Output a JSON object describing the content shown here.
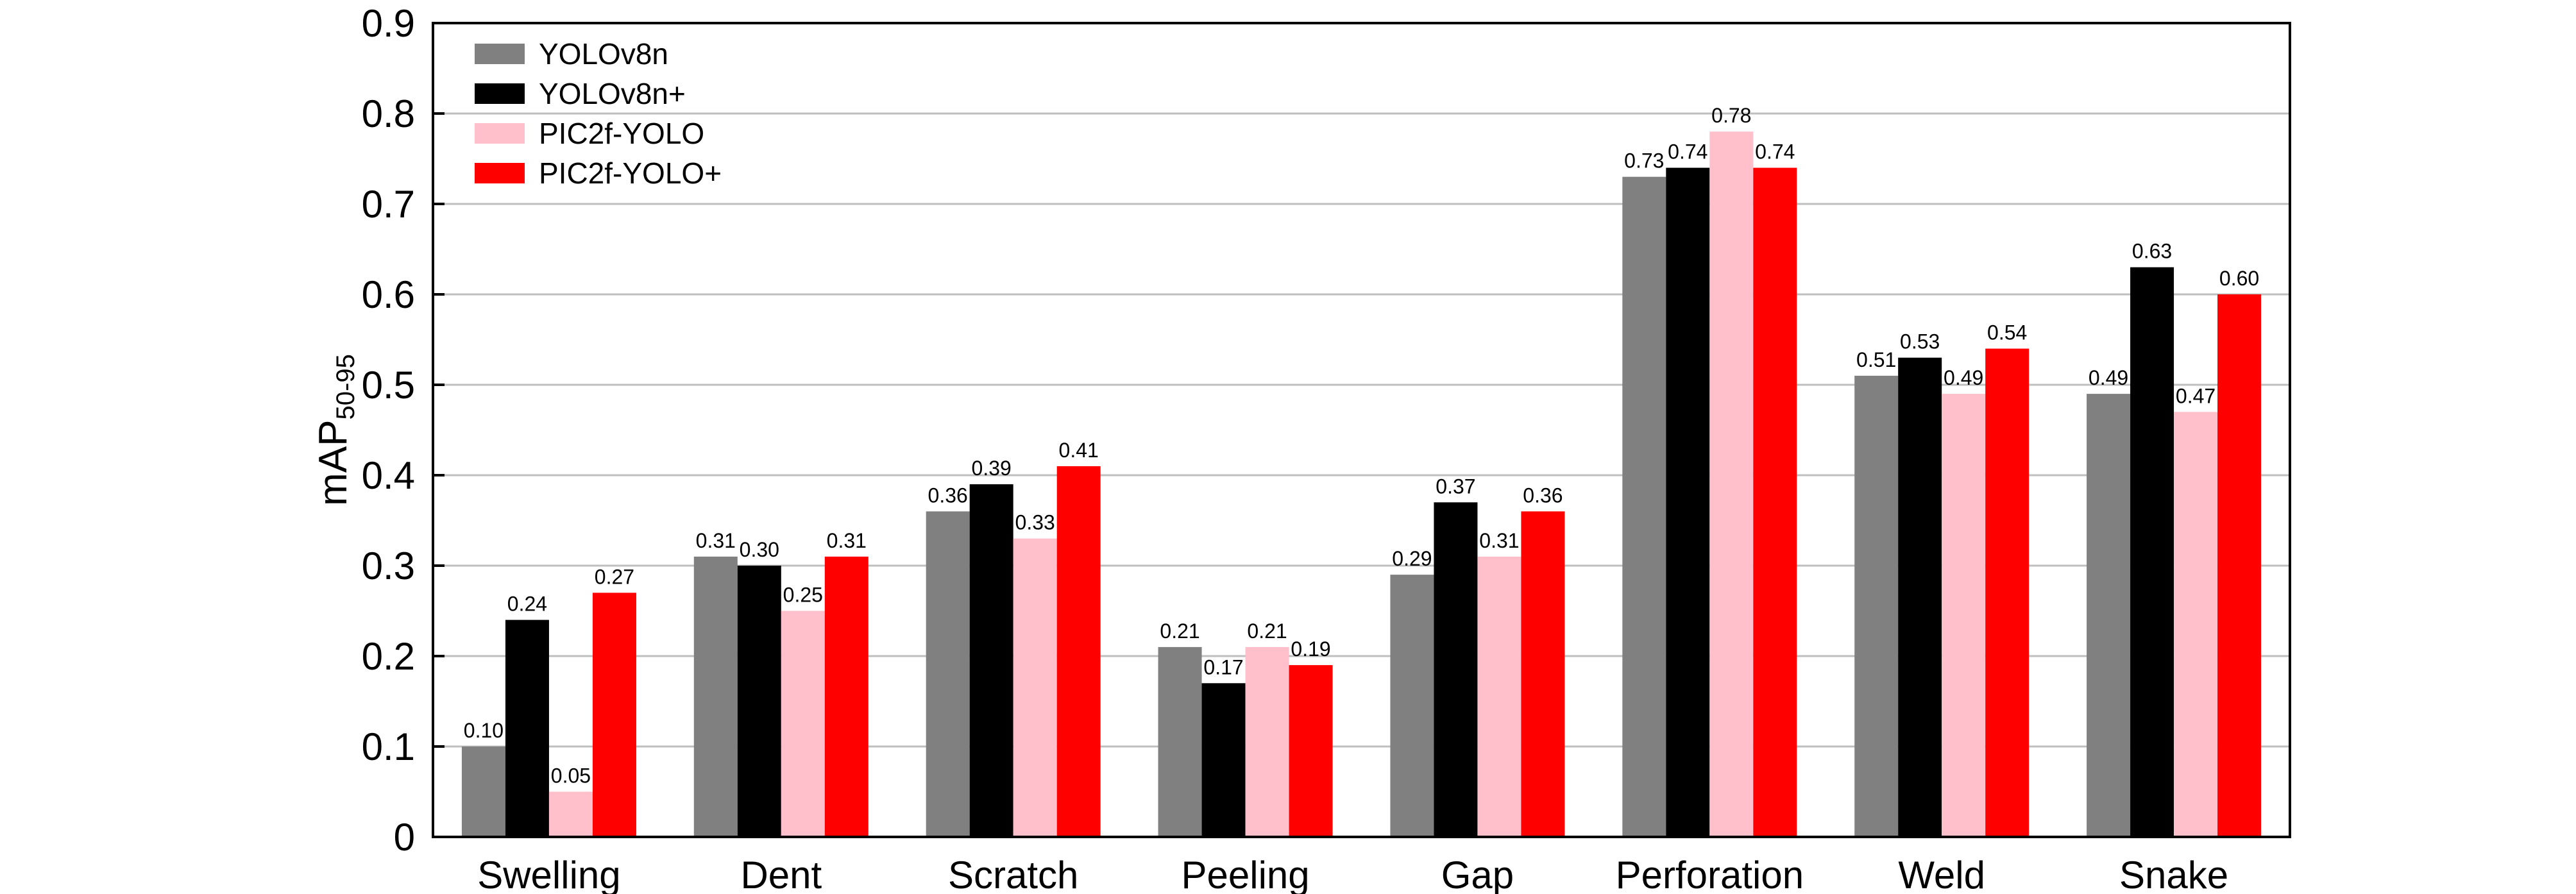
{
  "chart_data": {
    "type": "bar",
    "categories": [
      "Swelling",
      "Dent",
      "Scratch",
      "Peeling",
      "Gap",
      "Perforation",
      "Weld",
      "Snake"
    ],
    "series": [
      {
        "name": "YOLOv8n",
        "color": "#808080",
        "values": [
          0.1,
          0.31,
          0.36,
          0.21,
          0.29,
          0.73,
          0.51,
          0.49
        ],
        "labels": [
          "0.10",
          "0.31",
          "0.36",
          "0.21",
          "0.29",
          "0.73",
          "0.51",
          "0.49"
        ]
      },
      {
        "name": "YOLOv8n+",
        "color": "#000000",
        "values": [
          0.24,
          0.3,
          0.39,
          0.17,
          0.37,
          0.74,
          0.53,
          0.63
        ],
        "labels": [
          "0.24",
          "0.30",
          "0.39",
          "0.17",
          "0.37",
          "0.74",
          "0.53",
          "0.63"
        ]
      },
      {
        "name": "PIC2f-YOLO",
        "color": "#ffc0cb",
        "values": [
          0.05,
          0.25,
          0.33,
          0.21,
          0.31,
          0.78,
          0.49,
          0.47
        ],
        "labels": [
          "0.05",
          "0.25",
          "0.33",
          "0.21",
          "0.31",
          "0.78",
          "0.49",
          "0.47"
        ]
      },
      {
        "name": "PIC2f-YOLO+",
        "color": "#ff0000",
        "values": [
          0.27,
          0.31,
          0.41,
          0.19,
          0.36,
          0.74,
          0.54,
          0.6
        ],
        "labels": [
          "0.27",
          "0.31",
          "0.41",
          "0.19",
          "0.36",
          "0.74",
          "0.54",
          "0.60"
        ]
      }
    ],
    "ylabel_main": "mAP",
    "ylabel_sub": "50-95",
    "ylim": [
      0,
      0.9
    ],
    "yticks": [
      0,
      0.1,
      0.2,
      0.3,
      0.4,
      0.5,
      0.6,
      0.7,
      0.8,
      0.9
    ],
    "ytick_labels": [
      "0",
      "0.1",
      "0.2",
      "0.3",
      "0.4",
      "0.5",
      "0.6",
      "0.7",
      "0.8",
      "0.9"
    ],
    "grid": "horizontal",
    "legend_position": "top-left"
  }
}
